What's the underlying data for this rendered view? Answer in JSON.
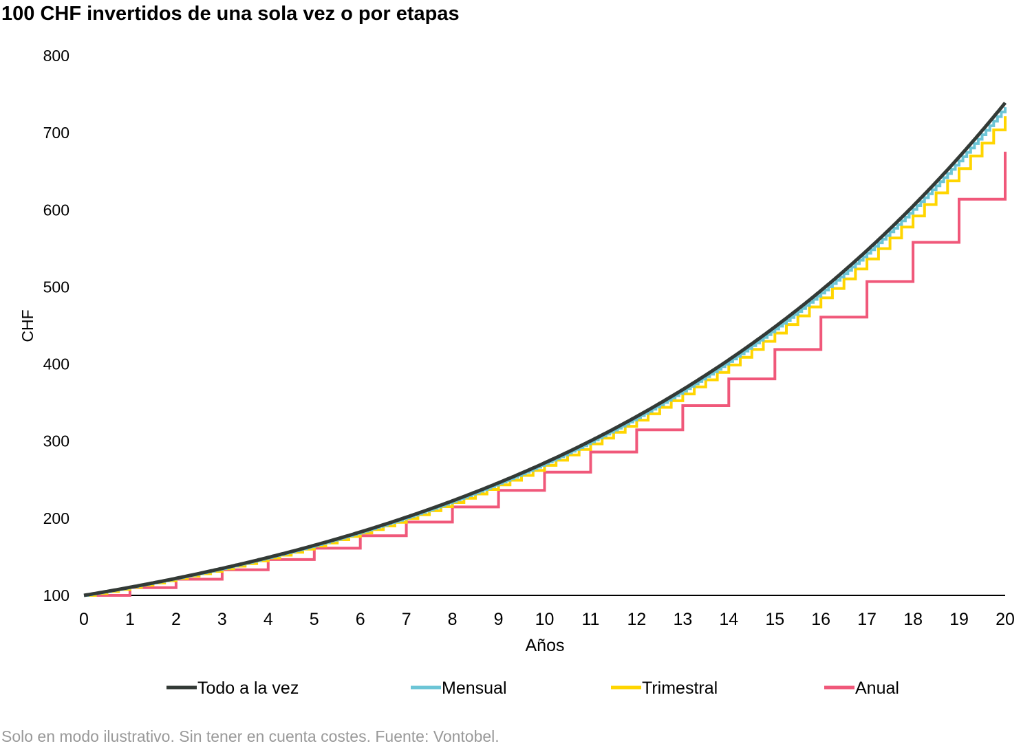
{
  "title": "100 CHF invertidos de una sola vez o por etapas",
  "footer": "Solo en modo ilustrativo. Sin tener en cuenta costes. Fuente: Vontobel.",
  "chart_data": {
    "type": "line",
    "title": "100 CHF invertidos de una sola vez o por etapas",
    "xlabel": "Años",
    "ylabel": "CHF",
    "xlim": [
      0,
      20
    ],
    "ylim": [
      100,
      800
    ],
    "x_ticks": [
      "0",
      "1",
      "2",
      "3",
      "4",
      "5",
      "6",
      "7",
      "8",
      "9",
      "10",
      "11",
      "12",
      "13",
      "14",
      "15",
      "16",
      "17",
      "18",
      "19",
      "20"
    ],
    "y_ticks": [
      "100",
      "200",
      "300",
      "400",
      "500",
      "600",
      "700",
      "800"
    ],
    "grid": false,
    "legend_position": "bottom",
    "x": [
      0,
      1,
      2,
      3,
      4,
      5,
      6,
      7,
      8,
      9,
      10,
      11,
      12,
      13,
      14,
      15,
      16,
      17,
      18,
      19,
      20
    ],
    "series": [
      {
        "name": "Todo a la vez",
        "color": "#333a36",
        "style": "smooth",
        "values": [
          100,
          110.5,
          122.1,
          135.0,
          149.2,
          164.9,
          182.2,
          201.4,
          222.6,
          246.0,
          271.8,
          300.4,
          332.0,
          366.9,
          405.5,
          448.2,
          495.3,
          547.4,
          605.0,
          668.6,
          738.9
        ]
      },
      {
        "name": "Mensual",
        "color": "#6cc5d6",
        "style": "step",
        "steps_per_year": 12,
        "values": [
          100,
          110.5,
          122.1,
          134.8,
          149.0,
          164.6,
          181.8,
          200.8,
          221.8,
          245.1,
          270.8,
          299.1,
          330.4,
          365.1,
          403.3,
          445.5,
          492.1,
          543.7,
          600.6,
          663.5,
          733.1
        ]
      },
      {
        "name": "Trimestral",
        "color": "#ffd500",
        "style": "step",
        "steps_per_year": 4,
        "values": [
          100,
          110.4,
          121.9,
          134.5,
          148.5,
          163.9,
          180.9,
          199.7,
          220.4,
          243.3,
          268.6,
          296.5,
          327.3,
          361.3,
          398.8,
          440.2,
          485.9,
          536.4,
          592.1,
          653.6,
          721.4
        ]
      },
      {
        "name": "Anual",
        "color": "#f0587a",
        "style": "step",
        "steps_per_year": 1,
        "values": [
          100,
          110.0,
          121.0,
          133.2,
          146.5,
          161.2,
          177.4,
          195.1,
          214.7,
          236.2,
          259.9,
          285.9,
          314.6,
          346.1,
          380.8,
          418.9,
          460.9,
          507.1,
          557.9,
          613.8,
          675.3
        ]
      }
    ]
  }
}
